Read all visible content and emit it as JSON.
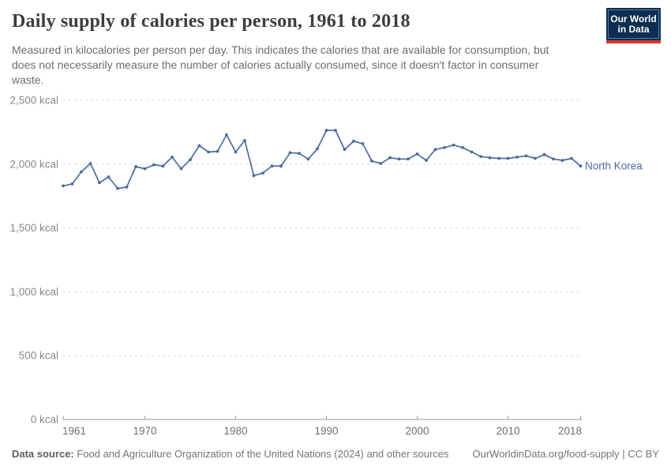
{
  "header": {
    "title": "Daily supply of calories per person, 1961 to 2018",
    "subtitle_lines": [
      "Measured in kilocalories per person per day. This indicates the calories that are available for consumption, but",
      "does not necessarily measure the number of calories actually consumed, since it doesn't factor in consumer",
      "waste."
    ]
  },
  "logo": {
    "line1": "Our World",
    "line2": "in Data"
  },
  "chart_data": {
    "type": "line",
    "title": "Daily supply of calories per person, 1961 to 2018",
    "series_label": "North Korea",
    "unit": "kcal",
    "x": [
      1961,
      1962,
      1963,
      1964,
      1965,
      1966,
      1967,
      1968,
      1969,
      1970,
      1971,
      1972,
      1973,
      1974,
      1975,
      1976,
      1977,
      1978,
      1979,
      1980,
      1981,
      1982,
      1983,
      1984,
      1985,
      1986,
      1987,
      1988,
      1989,
      1990,
      1991,
      1992,
      1993,
      1994,
      1995,
      1996,
      1997,
      1998,
      1999,
      2000,
      2001,
      2002,
      2003,
      2004,
      2005,
      2006,
      2007,
      2008,
      2009,
      2010,
      2011,
      2012,
      2013,
      2014,
      2015,
      2016,
      2017,
      2018
    ],
    "values": [
      1830,
      1845,
      1940,
      2005,
      1855,
      1900,
      1810,
      1820,
      1980,
      1965,
      1995,
      1985,
      2055,
      1965,
      2035,
      2145,
      2095,
      2100,
      2230,
      2095,
      2185,
      1910,
      1930,
      1985,
      1985,
      2090,
      2085,
      2040,
      2120,
      2265,
      2265,
      2115,
      2180,
      2160,
      2025,
      2005,
      2050,
      2040,
      2040,
      2080,
      2030,
      2115,
      2130,
      2150,
      2130,
      2095,
      2060,
      2050,
      2045,
      2045,
      2055,
      2065,
      2045,
      2075,
      2040,
      2030,
      2045,
      1985
    ],
    "ylim": [
      0,
      2500
    ],
    "yticks": [
      0,
      500,
      1000,
      1500,
      2000,
      2500
    ],
    "ytick_labels": [
      "0 kcal",
      "500 kcal",
      "1,000 kcal",
      "1,500 kcal",
      "2,000 kcal",
      "2,500 kcal"
    ],
    "xticks": [
      1961,
      1970,
      1980,
      1990,
      2000,
      2010,
      2018
    ],
    "grid": true,
    "legend_position": "end-of-line",
    "line_color": "#4C6B9E",
    "label_color": "#4C6B9E",
    "grid_color": "#d9d9d9",
    "axis_color": "#9a9a9a"
  },
  "footer": {
    "source_label": "Data source:",
    "source_text": " Food and Agriculture Organization of the United Nations (2024) and other sources",
    "link_text": "OurWorldinData.org/food-supply | CC BY"
  }
}
